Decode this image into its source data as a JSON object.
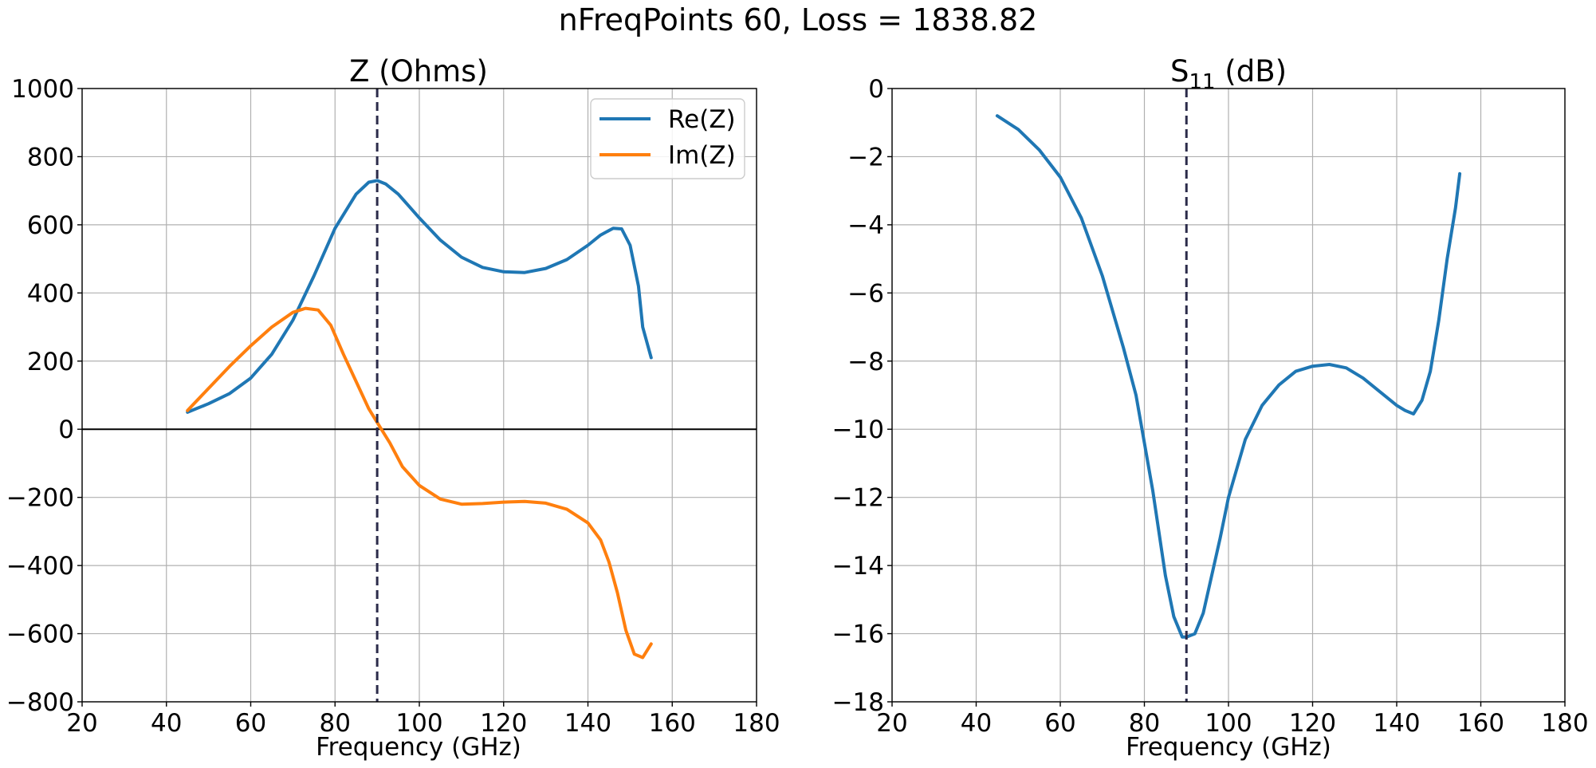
{
  "figure": {
    "suptitle": "nFreqPoints 60,  Loss =  1838.82"
  },
  "colors": {
    "re": "#1f77b4",
    "im": "#ff7f0e",
    "marker": "#2b2b4a",
    "grid": "#b0b0b0",
    "zero_line": "#000000"
  },
  "chart_data": [
    {
      "type": "line",
      "title": "Z (Ohms)",
      "xlabel": "Frequency (GHz)",
      "ylabel": "",
      "xlim": [
        20,
        180
      ],
      "ylim": [
        -800,
        1000
      ],
      "xticks": [
        20,
        40,
        60,
        80,
        100,
        120,
        140,
        160,
        180
      ],
      "yticks": [
        -800,
        -600,
        -400,
        -200,
        0,
        200,
        400,
        600,
        800,
        1000
      ],
      "xtick_labels": [
        "20",
        "40",
        "60",
        "80",
        "100",
        "120",
        "140",
        "160",
        "180"
      ],
      "ytick_labels": [
        "−800",
        "−600",
        "−400",
        "−200",
        "0",
        "200",
        "400",
        "600",
        "800",
        "1000"
      ],
      "grid": true,
      "legend": "top-right",
      "vline_x": 90,
      "hline_y": 0,
      "series": [
        {
          "name": "Re(Z)",
          "color": "#1f77b4",
          "x": [
            45,
            50,
            55,
            60,
            65,
            70,
            75,
            80,
            85,
            88,
            90,
            92,
            95,
            100,
            105,
            110,
            115,
            120,
            125,
            130,
            135,
            140,
            143,
            146,
            148,
            150,
            152,
            153,
            155
          ],
          "y": [
            50,
            75,
            105,
            150,
            220,
            320,
            450,
            590,
            690,
            725,
            730,
            720,
            690,
            620,
            555,
            505,
            475,
            462,
            460,
            472,
            498,
            540,
            570,
            590,
            588,
            540,
            420,
            300,
            210
          ]
        },
        {
          "name": "Im(Z)",
          "color": "#ff7f0e",
          "x": [
            45,
            50,
            55,
            60,
            65,
            70,
            73,
            76,
            79,
            82,
            85,
            88,
            90,
            93,
            96,
            100,
            105,
            110,
            115,
            120,
            125,
            130,
            135,
            140,
            143,
            145,
            147,
            149,
            151,
            153,
            155
          ],
          "y": [
            55,
            120,
            185,
            245,
            300,
            343,
            355,
            350,
            305,
            220,
            140,
            60,
            20,
            -40,
            -110,
            -165,
            -205,
            -220,
            -218,
            -214,
            -212,
            -217,
            -235,
            -275,
            -325,
            -390,
            -480,
            -590,
            -660,
            -670,
            -630
          ]
        }
      ]
    },
    {
      "type": "line",
      "title": "S₁₁ (dB)",
      "title_base": "S",
      "title_subscript": "11",
      "title_suffix": " (dB)",
      "xlabel": "Frequency (GHz)",
      "ylabel": "",
      "xlim": [
        20,
        180
      ],
      "ylim": [
        -18,
        0
      ],
      "xticks": [
        20,
        40,
        60,
        80,
        100,
        120,
        140,
        160,
        180
      ],
      "yticks": [
        -18,
        -16,
        -14,
        -12,
        -10,
        -8,
        -6,
        -4,
        -2,
        0
      ],
      "xtick_labels": [
        "20",
        "40",
        "60",
        "80",
        "100",
        "120",
        "140",
        "160",
        "180"
      ],
      "ytick_labels": [
        "−18",
        "−16",
        "−14",
        "−12",
        "−10",
        "−8",
        "−6",
        "−4",
        "−2",
        "0"
      ],
      "grid": true,
      "vline_x": 90,
      "series": [
        {
          "color": "#1f77b4",
          "x": [
            45,
            50,
            55,
            60,
            65,
            70,
            75,
            78,
            80,
            82,
            85,
            87,
            89,
            90,
            92,
            94,
            96,
            98,
            100,
            104,
            108,
            112,
            116,
            120,
            124,
            128,
            132,
            136,
            140,
            142,
            144,
            146,
            148,
            150,
            152,
            154,
            155
          ],
          "y": [
            -0.8,
            -1.2,
            -1.8,
            -2.6,
            -3.8,
            -5.5,
            -7.6,
            -9.0,
            -10.4,
            -11.8,
            -14.3,
            -15.5,
            -16.1,
            -16.1,
            -16.0,
            -15.4,
            -14.3,
            -13.2,
            -12.0,
            -10.3,
            -9.3,
            -8.7,
            -8.3,
            -8.15,
            -8.1,
            -8.2,
            -8.5,
            -8.9,
            -9.3,
            -9.45,
            -9.55,
            -9.15,
            -8.3,
            -6.8,
            -5.0,
            -3.5,
            -2.5
          ]
        }
      ]
    }
  ]
}
